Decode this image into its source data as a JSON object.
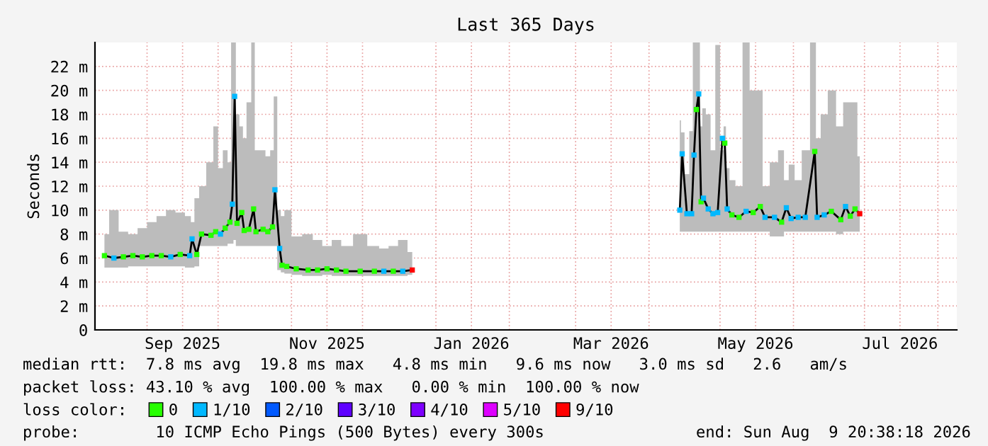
{
  "chart_data": {
    "type": "line",
    "title": "Last 365 Days",
    "ylabel": "Seconds",
    "legend_title": "loss color:",
    "xlim": [
      "2025-08-10",
      "2026-08-09"
    ],
    "xticks": [
      {
        "value": "2025-09-01",
        "label": null
      },
      {
        "value": "2025-09-16",
        "label": "Sep 2025"
      },
      {
        "value": "2025-10-01",
        "label": null
      },
      {
        "value": "2025-11-01",
        "label": null
      },
      {
        "value": "2025-11-16",
        "label": "Nov 2025"
      },
      {
        "value": "2025-12-01",
        "label": null
      },
      {
        "value": "2026-01-01",
        "label": null
      },
      {
        "value": "2026-01-16",
        "label": "Jan 2026"
      },
      {
        "value": "2026-02-01",
        "label": null
      },
      {
        "value": "2026-03-01",
        "label": null
      },
      {
        "value": "2026-03-16",
        "label": "Mar 2026"
      },
      {
        "value": "2026-04-01",
        "label": null
      },
      {
        "value": "2026-05-01",
        "label": null
      },
      {
        "value": "2026-05-16",
        "label": "May 2026"
      },
      {
        "value": "2026-06-01",
        "label": null
      },
      {
        "value": "2026-07-01",
        "label": null
      },
      {
        "value": "2026-07-16",
        "label": "Jul 2026"
      },
      {
        "value": "2026-08-01",
        "label": null
      }
    ],
    "ylim": [
      0,
      24
    ],
    "yticks": [
      0,
      {
        "value": 2,
        "label": "2 m"
      },
      {
        "value": 4,
        "label": "4 m"
      },
      {
        "value": 6,
        "label": "6 m"
      },
      {
        "value": 8,
        "label": "8 m"
      },
      {
        "value": 10,
        "label": "10 m"
      },
      {
        "value": 12,
        "label": "12 m"
      },
      {
        "value": 14,
        "label": "14 m"
      },
      {
        "value": 16,
        "label": "16 m"
      },
      {
        "value": 18,
        "label": "18 m"
      },
      {
        "value": 20,
        "label": "20 m"
      },
      {
        "value": 22,
        "label": "22 m"
      }
    ],
    "grid": true,
    "legend": "bottom",
    "series": [
      {
        "color": "#000000",
        "x": [
          "2025-08-14",
          "2025-08-18",
          "2025-08-22",
          "2025-08-26",
          "2025-08-30",
          "2025-09-03",
          "2025-09-07",
          "2025-09-11",
          "2025-09-15",
          "2025-09-19",
          "2025-09-20",
          "2025-09-22",
          "2025-09-24",
          "2025-09-28",
          "2025-09-30",
          "2025-10-02",
          "2025-10-04",
          "2025-10-06",
          "2025-10-07",
          "2025-10-08",
          "2025-10-09",
          "2025-10-11",
          "2025-10-12",
          "2025-10-14",
          "2025-10-16",
          "2025-10-17",
          "2025-10-20",
          "2025-10-22",
          "2025-10-24",
          "2025-10-25",
          "2025-10-27",
          "2025-10-28",
          "2025-10-30",
          "2025-11-03",
          "2025-11-08",
          "2025-11-12",
          "2025-11-16",
          "2025-11-20",
          "2025-11-24",
          "2025-11-30",
          "2025-12-06",
          "2025-12-10",
          "2025-12-14",
          "2025-12-18",
          "2025-12-22",
          "2026-02-01",
          "2026-04-14",
          "2026-04-15",
          "2026-04-17",
          "2026-04-19",
          "2026-04-20",
          "2026-04-21",
          "2026-04-22",
          "2026-04-23",
          "2026-04-24",
          "2026-04-26",
          "2026-04-28",
          "2026-04-30",
          "2026-05-02",
          "2026-05-03",
          "2026-05-04",
          "2026-05-06",
          "2026-05-09",
          "2026-05-12",
          "2026-05-15",
          "2026-05-18",
          "2026-05-20",
          "2026-05-24",
          "2026-05-27",
          "2026-05-29",
          "2026-05-31",
          "2026-06-03",
          "2026-06-06",
          "2026-06-10",
          "2026-06-11",
          "2026-06-14",
          "2026-06-17",
          "2026-06-21",
          "2026-06-23",
          "2026-06-25",
          "2026-06-27",
          "2026-06-29"
        ],
        "values": [
          6.2,
          6.0,
          6.1,
          6.2,
          6.1,
          6.2,
          6.2,
          6.1,
          6.3,
          6.2,
          7.6,
          6.3,
          8.0,
          7.9,
          8.2,
          8.0,
          8.5,
          9.0,
          10.5,
          19.5,
          8.9,
          9.8,
          8.3,
          8.4,
          10.1,
          8.2,
          8.4,
          8.2,
          8.6,
          11.7,
          6.8,
          5.4,
          5.3,
          5.1,
          5.0,
          5.0,
          5.1,
          5.0,
          4.9,
          4.9,
          4.9,
          4.9,
          4.9,
          4.9,
          5.0,
          null,
          10.0,
          14.7,
          9.7,
          9.7,
          14.6,
          18.4,
          19.7,
          10.7,
          11.0,
          10.1,
          9.7,
          9.8,
          16.0,
          15.6,
          10.1,
          9.6,
          9.4,
          9.9,
          9.8,
          10.3,
          9.4,
          9.4,
          9.0,
          10.2,
          9.3,
          9.4,
          9.4,
          14.9,
          9.4,
          9.6,
          9.9,
          9.2,
          10.3,
          9.5,
          10.1,
          9.7
        ],
        "lower": [
          5.2,
          5.2,
          5.2,
          5.3,
          5.3,
          5.3,
          5.3,
          5.3,
          5.3,
          5.2,
          5.2,
          5.3,
          7.0,
          7.0,
          7.0,
          7.0,
          7.0,
          7.2,
          7.2,
          7.5,
          7.0,
          7.0,
          7.0,
          7.0,
          7.0,
          7.0,
          7.0,
          7.0,
          7.0,
          7.0,
          5.0,
          4.8,
          4.7,
          4.6,
          4.5,
          4.5,
          4.6,
          4.5,
          4.5,
          4.5,
          4.5,
          4.5,
          4.5,
          4.5,
          4.6,
          null,
          8.2,
          8.2,
          8.2,
          8.2,
          8.2,
          8.2,
          8.2,
          8.2,
          8.2,
          8.2,
          8.2,
          8.2,
          8.2,
          8.2,
          8.2,
          8.2,
          8.2,
          8.2,
          8.2,
          8.2,
          8.2,
          7.8,
          7.8,
          8.2,
          8.2,
          8.2,
          8.2,
          8.2,
          8.2,
          8.2,
          8.2,
          8.0,
          8.2,
          8.2,
          8.2,
          8.2
        ],
        "upper": [
          8.0,
          10.0,
          8.2,
          8.0,
          8.5,
          9.0,
          9.5,
          10.0,
          9.8,
          9.5,
          9.0,
          11.0,
          12.0,
          14.0,
          17.0,
          13.5,
          15.0,
          14.0,
          24.0,
          24.0,
          18.0,
          17.0,
          16.0,
          19.0,
          24.0,
          15.0,
          15.0,
          14.5,
          15.0,
          19.5,
          10.0,
          9.5,
          10.0,
          7.8,
          8.0,
          7.5,
          7.0,
          7.5,
          7.0,
          8.0,
          7.0,
          6.8,
          7.0,
          7.5,
          6.5,
          null,
          17.5,
          16.5,
          13.0,
          16.6,
          24.0,
          24.0,
          24.0,
          17.0,
          18.5,
          18.0,
          15.0,
          23.8,
          15.0,
          17.0,
          13.5,
          12.5,
          12.0,
          24.0,
          20.0,
          20.0,
          12.0,
          14.0,
          15.0,
          12.5,
          13.8,
          12.5,
          15.0,
          24.0,
          16.0,
          18.0,
          20.0,
          17.0,
          19.0,
          19.0,
          19.0,
          14.5
        ]
      },
      {
        "type": "scatter",
        "name": "0",
        "color": "#26ff00",
        "x": [
          "2025-08-14",
          "2025-08-22",
          "2025-08-26",
          "2025-08-30",
          "2025-09-03",
          "2025-09-07",
          "2025-09-15",
          "2025-09-22",
          "2025-09-24",
          "2025-09-28",
          "2025-09-30",
          "2025-10-04",
          "2025-10-06",
          "2025-10-09",
          "2025-10-11",
          "2025-10-12",
          "2025-10-14",
          "2025-10-16",
          "2025-10-17",
          "2025-10-20",
          "2025-10-22",
          "2025-10-24",
          "2025-10-28",
          "2025-10-30",
          "2025-11-03",
          "2025-11-08",
          "2025-11-12",
          "2025-11-16",
          "2025-11-20",
          "2025-11-24",
          "2025-11-30",
          "2025-12-06",
          "2025-12-14",
          "2026-04-21",
          "2026-04-23",
          "2026-05-03",
          "2026-05-06",
          "2026-05-09",
          "2026-05-15",
          "2026-05-18",
          "2026-05-27",
          "2026-06-10",
          "2026-06-17",
          "2026-06-21",
          "2026-06-25",
          "2026-06-27"
        ],
        "values": [
          6.2,
          6.1,
          6.2,
          6.1,
          6.2,
          6.2,
          6.3,
          6.3,
          8.0,
          7.9,
          8.2,
          8.5,
          9.0,
          8.9,
          9.8,
          8.3,
          8.4,
          10.1,
          8.2,
          8.4,
          8.2,
          8.6,
          5.4,
          5.3,
          5.1,
          5.0,
          5.0,
          5.1,
          5.0,
          4.9,
          4.9,
          4.9,
          4.9,
          18.4,
          10.7,
          15.6,
          9.6,
          9.4,
          9.8,
          10.3,
          9.0,
          14.9,
          9.9,
          9.2,
          9.5,
          10.1
        ]
      },
      {
        "type": "scatter",
        "name": "1/10",
        "color": "#00b8ff",
        "x": [
          "2025-08-18",
          "2025-09-11",
          "2025-09-19",
          "2025-09-20",
          "2025-10-02",
          "2025-10-07",
          "2025-10-08",
          "2025-10-25",
          "2025-10-27",
          "2025-12-10",
          "2025-12-18",
          "2026-04-14",
          "2026-04-15",
          "2026-04-17",
          "2026-04-19",
          "2026-04-20",
          "2026-04-22",
          "2026-04-24",
          "2026-04-26",
          "2026-04-28",
          "2026-04-30",
          "2026-05-02",
          "2026-05-04",
          "2026-05-12",
          "2026-05-20",
          "2026-05-24",
          "2026-05-29",
          "2026-05-31",
          "2026-06-03",
          "2026-06-06",
          "2026-06-11",
          "2026-06-14",
          "2026-06-23"
        ],
        "values": [
          6.0,
          6.1,
          6.2,
          7.6,
          8.0,
          10.5,
          19.5,
          11.7,
          6.8,
          4.9,
          4.9,
          10.0,
          14.7,
          9.7,
          9.7,
          14.6,
          19.7,
          11.0,
          10.1,
          9.7,
          9.8,
          16.0,
          10.1,
          9.9,
          9.4,
          9.4,
          10.2,
          9.3,
          9.4,
          9.4,
          9.4,
          9.6,
          10.3
        ]
      },
      {
        "type": "scatter",
        "name": "2/10",
        "color": "#0059ff"
      },
      {
        "type": "scatter",
        "name": "3/10",
        "color": "#5e00ff"
      },
      {
        "type": "scatter",
        "name": "4/10",
        "color": "#7e00ff"
      },
      {
        "type": "scatter",
        "name": "5/10",
        "color": "#dd00ff"
      },
      {
        "type": "scatter",
        "name": "9/10",
        "color": "#ff0000",
        "x": [
          "2025-12-22",
          "2026-06-29"
        ],
        "values": [
          5.0,
          9.7
        ]
      }
    ],
    "annotations": [
      "median rtt:  7.8 ms avg  19.8 ms max   4.8 ms min   9.6 ms now   3.0 ms sd   2.6   am/s",
      "packet loss: 43.10 % avg  100.00 % max   0.00 % min  100.00 % now",
      "probe:        10 ICMP Echo Pings (500 Bytes) every 300s                end: Sun Aug  9 20:38:18 2026"
    ]
  }
}
